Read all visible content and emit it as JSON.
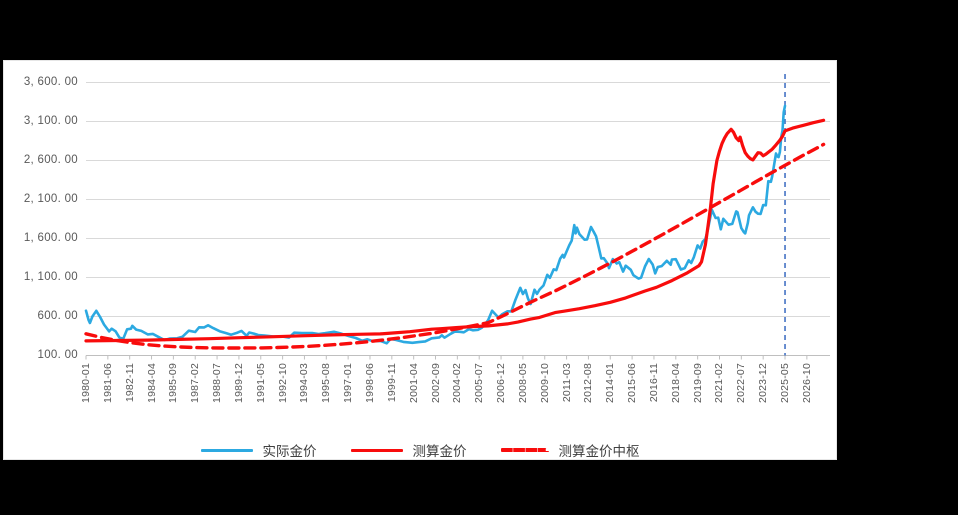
{
  "window": {
    "background": "#000000",
    "panel_background": "#FFFFFF"
  },
  "colors": {
    "actual_line": "#2CA9E1",
    "calculated_line": "#F80C0C",
    "center_line": "#F80C0C",
    "marker_line": "#4472C4",
    "gridline": "#D9D9D9",
    "axis_line": "#BFBFBF",
    "axis_text": "#595959"
  },
  "legend": {
    "items": [
      {
        "label": "实际金价",
        "color": "#2CA9E1",
        "dashed": false
      },
      {
        "label": "测算金价",
        "color": "#F80C0C",
        "dashed": false
      },
      {
        "label": "测算金价中枢",
        "color": "#F80C0C",
        "dashed": true
      }
    ]
  },
  "y_axis": {
    "labels": [
      "3, 600. 00",
      "3, 100. 00",
      "2, 600. 00",
      "2, 100. 00",
      "1, 600. 00",
      "1, 100. 00",
      "600. 00",
      "100. 00"
    ],
    "values": [
      3600,
      3100,
      2600,
      2100,
      1600,
      1100,
      600,
      100
    ]
  },
  "x_axis": {
    "labels": [
      "1980-01",
      "1981-06",
      "1982-11",
      "1984-04",
      "1985-09",
      "1987-02",
      "1988-07",
      "1989-12",
      "1991-05",
      "1992-10",
      "1994-03",
      "1995-08",
      "1997-01",
      "1998-06",
      "1999-11",
      "2001-04",
      "2002-09",
      "2004-02",
      "2005-07",
      "2006-12",
      "2008-05",
      "2009-10",
      "2011-03",
      "2012-08",
      "2014-01",
      "2015-06",
      "2016-11",
      "2018-04",
      "2019-09",
      "2021-02",
      "2022-07",
      "2023-12",
      "2025-05",
      "2026-10"
    ],
    "tick_months": [
      0,
      17,
      34,
      51,
      68,
      85,
      102,
      119,
      136,
      153,
      170,
      187,
      204,
      221,
      238,
      255,
      272,
      289,
      306,
      323,
      340,
      357,
      374,
      391,
      408,
      425,
      442,
      459,
      476,
      493,
      510,
      527,
      544,
      561
    ]
  },
  "chart_data": {
    "type": "line",
    "title": "",
    "xlabel": "",
    "ylabel": "",
    "x_unit": "months_since_1980-01",
    "x_domain_months": [
      0,
      579
    ],
    "ylim": [
      100,
      3600
    ],
    "y_gridline_step": 500,
    "legend_position": "bottom",
    "marker_line": {
      "x_month": 544,
      "x_label": "2025-05",
      "color": "#4472C4",
      "style": "dashed"
    },
    "series": [
      {
        "name": "实际金价",
        "color": "#2CA9E1",
        "style": "solid",
        "width": 2.6,
        "points": [
          [
            0,
            675
          ],
          [
            2,
            554
          ],
          [
            3,
            517
          ],
          [
            5,
            600
          ],
          [
            8,
            673
          ],
          [
            11,
            594
          ],
          [
            14,
            498
          ],
          [
            18,
            409
          ],
          [
            20,
            443
          ],
          [
            23,
            410
          ],
          [
            26,
            330
          ],
          [
            29,
            315
          ],
          [
            32,
            436
          ],
          [
            35,
            444
          ],
          [
            36,
            481
          ],
          [
            39,
            432
          ],
          [
            43,
            416
          ],
          [
            48,
            371
          ],
          [
            52,
            377
          ],
          [
            56,
            341
          ],
          [
            61,
            299
          ],
          [
            65,
            317
          ],
          [
            71,
            321
          ],
          [
            75,
            340
          ],
          [
            80,
            418
          ],
          [
            85,
            401
          ],
          [
            88,
            461
          ],
          [
            92,
            460
          ],
          [
            95,
            487
          ],
          [
            99,
            451
          ],
          [
            104,
            412
          ],
          [
            109,
            387
          ],
          [
            113,
            367
          ],
          [
            118,
            394
          ],
          [
            121,
            416
          ],
          [
            125,
            353
          ],
          [
            127,
            395
          ],
          [
            131,
            378
          ],
          [
            134,
            363
          ],
          [
            139,
            356
          ],
          [
            146,
            344
          ],
          [
            152,
            345
          ],
          [
            158,
            330
          ],
          [
            162,
            392
          ],
          [
            168,
            387
          ],
          [
            176,
            388
          ],
          [
            181,
            376
          ],
          [
            186,
            386
          ],
          [
            193,
            404
          ],
          [
            198,
            383
          ],
          [
            205,
            346
          ],
          [
            210,
            324
          ],
          [
            215,
            288
          ],
          [
            219,
            308
          ],
          [
            223,
            284
          ],
          [
            229,
            287
          ],
          [
            234,
            256
          ],
          [
            237,
            311
          ],
          [
            241,
            300
          ],
          [
            247,
            274
          ],
          [
            254,
            263
          ],
          [
            259,
            272
          ],
          [
            264,
            281
          ],
          [
            269,
            321
          ],
          [
            275,
            332
          ],
          [
            277,
            359
          ],
          [
            279,
            328
          ],
          [
            284,
            379
          ],
          [
            287,
            406
          ],
          [
            291,
            404
          ],
          [
            294,
            398
          ],
          [
            298,
            439
          ],
          [
            301,
            423
          ],
          [
            305,
            430
          ],
          [
            308,
            456
          ],
          [
            311,
            510
          ],
          [
            313,
            555
          ],
          [
            316,
            675
          ],
          [
            321,
            586
          ],
          [
            324,
            631
          ],
          [
            328,
            667
          ],
          [
            331,
            665
          ],
          [
            334,
            806
          ],
          [
            338,
            968
          ],
          [
            340,
            889
          ],
          [
            342,
            939
          ],
          [
            344,
            830
          ],
          [
            346,
            760
          ],
          [
            349,
            943
          ],
          [
            351,
            890
          ],
          [
            353,
            946
          ],
          [
            356,
            997
          ],
          [
            359,
            1135
          ],
          [
            361,
            1095
          ],
          [
            364,
            1205
          ],
          [
            366,
            1193
          ],
          [
            369,
            1342
          ],
          [
            371,
            1390
          ],
          [
            372,
            1356
          ],
          [
            376,
            1511
          ],
          [
            378,
            1573
          ],
          [
            380,
            1772
          ],
          [
            381,
            1665
          ],
          [
            382,
            1739
          ],
          [
            384,
            1656
          ],
          [
            388,
            1585
          ],
          [
            390,
            1589
          ],
          [
            393,
            1747
          ],
          [
            395,
            1688
          ],
          [
            397,
            1627
          ],
          [
            399,
            1487
          ],
          [
            401,
            1343
          ],
          [
            403,
            1347
          ],
          [
            406,
            1276
          ],
          [
            407,
            1221
          ],
          [
            410,
            1336
          ],
          [
            413,
            1279
          ],
          [
            415,
            1296
          ],
          [
            418,
            1176
          ],
          [
            420,
            1251
          ],
          [
            424,
            1199
          ],
          [
            426,
            1130
          ],
          [
            430,
            1086
          ],
          [
            432,
            1097
          ],
          [
            435,
            1242
          ],
          [
            438,
            1337
          ],
          [
            441,
            1266
          ],
          [
            443,
            1152
          ],
          [
            445,
            1234
          ],
          [
            448,
            1246
          ],
          [
            452,
            1314
          ],
          [
            455,
            1264
          ],
          [
            456,
            1331
          ],
          [
            459,
            1335
          ],
          [
            463,
            1202
          ],
          [
            466,
            1221
          ],
          [
            469,
            1320
          ],
          [
            471,
            1286
          ],
          [
            473,
            1359
          ],
          [
            476,
            1511
          ],
          [
            478,
            1471
          ],
          [
            480,
            1561
          ],
          [
            482,
            1593
          ],
          [
            484,
            1716
          ],
          [
            487,
            1969
          ],
          [
            490,
            1863
          ],
          [
            492,
            1867
          ],
          [
            494,
            1718
          ],
          [
            496,
            1853
          ],
          [
            500,
            1777
          ],
          [
            503,
            1787
          ],
          [
            506,
            1948
          ],
          [
            507,
            1937
          ],
          [
            510,
            1733
          ],
          [
            512,
            1681
          ],
          [
            513,
            1665
          ],
          [
            515,
            1797
          ],
          [
            516,
            1898
          ],
          [
            519,
            2000
          ],
          [
            521,
            1943
          ],
          [
            523,
            1918
          ],
          [
            525,
            1915
          ],
          [
            527,
            2030
          ],
          [
            529,
            2025
          ],
          [
            531,
            2335
          ],
          [
            533,
            2327
          ],
          [
            534,
            2398
          ],
          [
            537,
            2690
          ],
          [
            538,
            2652
          ],
          [
            539,
            2644
          ],
          [
            540,
            2710
          ],
          [
            541,
            2897
          ],
          [
            542,
            2984
          ],
          [
            543,
            3218
          ],
          [
            544,
            3300
          ]
        ]
      },
      {
        "name": "测算金价",
        "color": "#F80C0C",
        "style": "solid",
        "width": 3.2,
        "points": [
          [
            0,
            287
          ],
          [
            24,
            292
          ],
          [
            48,
            298
          ],
          [
            72,
            306
          ],
          [
            96,
            316
          ],
          [
            120,
            328
          ],
          [
            144,
            340
          ],
          [
            168,
            352
          ],
          [
            192,
            364
          ],
          [
            216,
            373
          ],
          [
            229,
            377
          ],
          [
            240,
            390
          ],
          [
            252,
            405
          ],
          [
            269,
            437
          ],
          [
            276,
            444
          ],
          [
            288,
            458
          ],
          [
            300,
            470
          ],
          [
            313,
            480
          ],
          [
            328,
            505
          ],
          [
            336,
            528
          ],
          [
            346,
            567
          ],
          [
            353,
            588
          ],
          [
            365,
            650
          ],
          [
            372,
            668
          ],
          [
            384,
            700
          ],
          [
            396,
            738
          ],
          [
            408,
            782
          ],
          [
            420,
            838
          ],
          [
            435,
            927
          ],
          [
            444,
            975
          ],
          [
            456,
            1060
          ],
          [
            468,
            1160
          ],
          [
            477,
            1250
          ],
          [
            479,
            1300
          ],
          [
            482,
            1520
          ],
          [
            484,
            1750
          ],
          [
            486,
            2000
          ],
          [
            488,
            2300
          ],
          [
            491,
            2600
          ],
          [
            493,
            2720
          ],
          [
            495,
            2820
          ],
          [
            497,
            2890
          ],
          [
            499,
            2945
          ],
          [
            502,
            3000
          ],
          [
            504,
            2960
          ],
          [
            506,
            2890
          ],
          [
            508,
            2855
          ],
          [
            509,
            2900
          ],
          [
            511,
            2790
          ],
          [
            513,
            2700
          ],
          [
            515,
            2655
          ],
          [
            517,
            2625
          ],
          [
            519,
            2608
          ],
          [
            521,
            2655
          ],
          [
            523,
            2700
          ],
          [
            525,
            2695
          ],
          [
            527,
            2660
          ],
          [
            529,
            2680
          ],
          [
            531,
            2705
          ],
          [
            534,
            2745
          ],
          [
            537,
            2800
          ],
          [
            540,
            2860
          ],
          [
            542,
            2910
          ],
          [
            544,
            2980
          ],
          [
            550,
            3015
          ],
          [
            558,
            3050
          ],
          [
            566,
            3085
          ],
          [
            574,
            3115
          ]
        ]
      },
      {
        "name": "测算金价中枢",
        "color": "#F80C0C",
        "style": "dashed",
        "width": 3.4,
        "points": [
          [
            0,
            378
          ],
          [
            12,
            331
          ],
          [
            24,
            292
          ],
          [
            36,
            262
          ],
          [
            48,
            239
          ],
          [
            60,
            222
          ],
          [
            72,
            210
          ],
          [
            84,
            202
          ],
          [
            96,
            198
          ],
          [
            108,
            196
          ],
          [
            120,
            196
          ],
          [
            125,
            197
          ],
          [
            137,
            198
          ],
          [
            149,
            202
          ],
          [
            161,
            209
          ],
          [
            173,
            218
          ],
          [
            185,
            229
          ],
          [
            197,
            243
          ],
          [
            209,
            260
          ],
          [
            221,
            280
          ],
          [
            233,
            302
          ],
          [
            245,
            327
          ],
          [
            257,
            355
          ],
          [
            269,
            385
          ],
          [
            281,
            419
          ],
          [
            293,
            455
          ],
          [
            305,
            494
          ],
          [
            313,
            520
          ],
          [
            325,
            613
          ],
          [
            337,
            710
          ],
          [
            349,
            807
          ],
          [
            361,
            898
          ],
          [
            365,
            927
          ],
          [
            377,
            1024
          ],
          [
            389,
            1124
          ],
          [
            401,
            1226
          ],
          [
            413,
            1330
          ],
          [
            425,
            1436
          ],
          [
            437,
            1544
          ],
          [
            449,
            1654
          ],
          [
            461,
            1764
          ],
          [
            473,
            1876
          ],
          [
            485,
            1988
          ],
          [
            497,
            2100
          ],
          [
            509,
            2213
          ],
          [
            521,
            2326
          ],
          [
            533,
            2438
          ],
          [
            545,
            2548
          ],
          [
            557,
            2656
          ],
          [
            569,
            2762
          ],
          [
            574,
            2806
          ]
        ]
      }
    ]
  }
}
